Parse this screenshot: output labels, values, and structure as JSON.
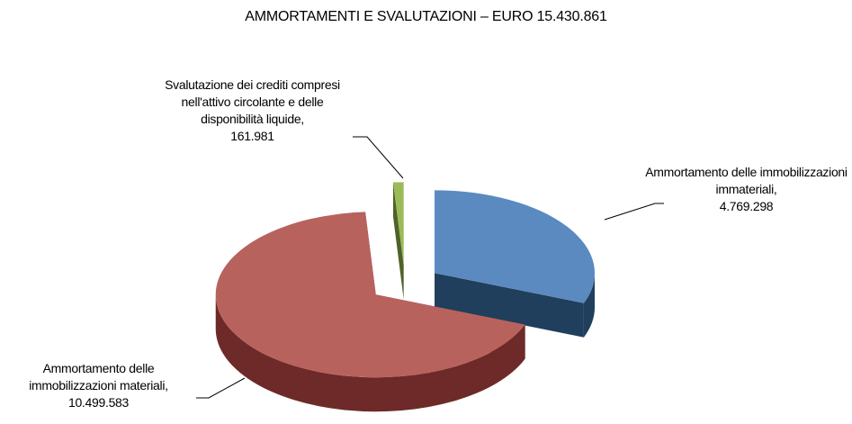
{
  "chart_data": {
    "type": "pie",
    "title": "AMMORTAMENTI E SVALUTAZIONI – EURO 15.430.861",
    "categories": [
      "Ammortamento delle immobilizzazioni immateriali,",
      "Ammortamento delle immobilizzazioni materiali,",
      "Svalutazione dei crediti compresi nell'attivo circolante e delle disponibilità liquide,"
    ],
    "values": [
      4769298,
      10499583,
      161981
    ],
    "value_labels": [
      "4.769.298",
      "10.499.583",
      "161.981"
    ],
    "colors": [
      "#5a8ac0",
      "#b8625e",
      "#9bbb59"
    ],
    "side_colors": [
      "#1f3f5c",
      "#6d2a28",
      "#4f6228"
    ],
    "exploded": true,
    "three_d": true
  }
}
